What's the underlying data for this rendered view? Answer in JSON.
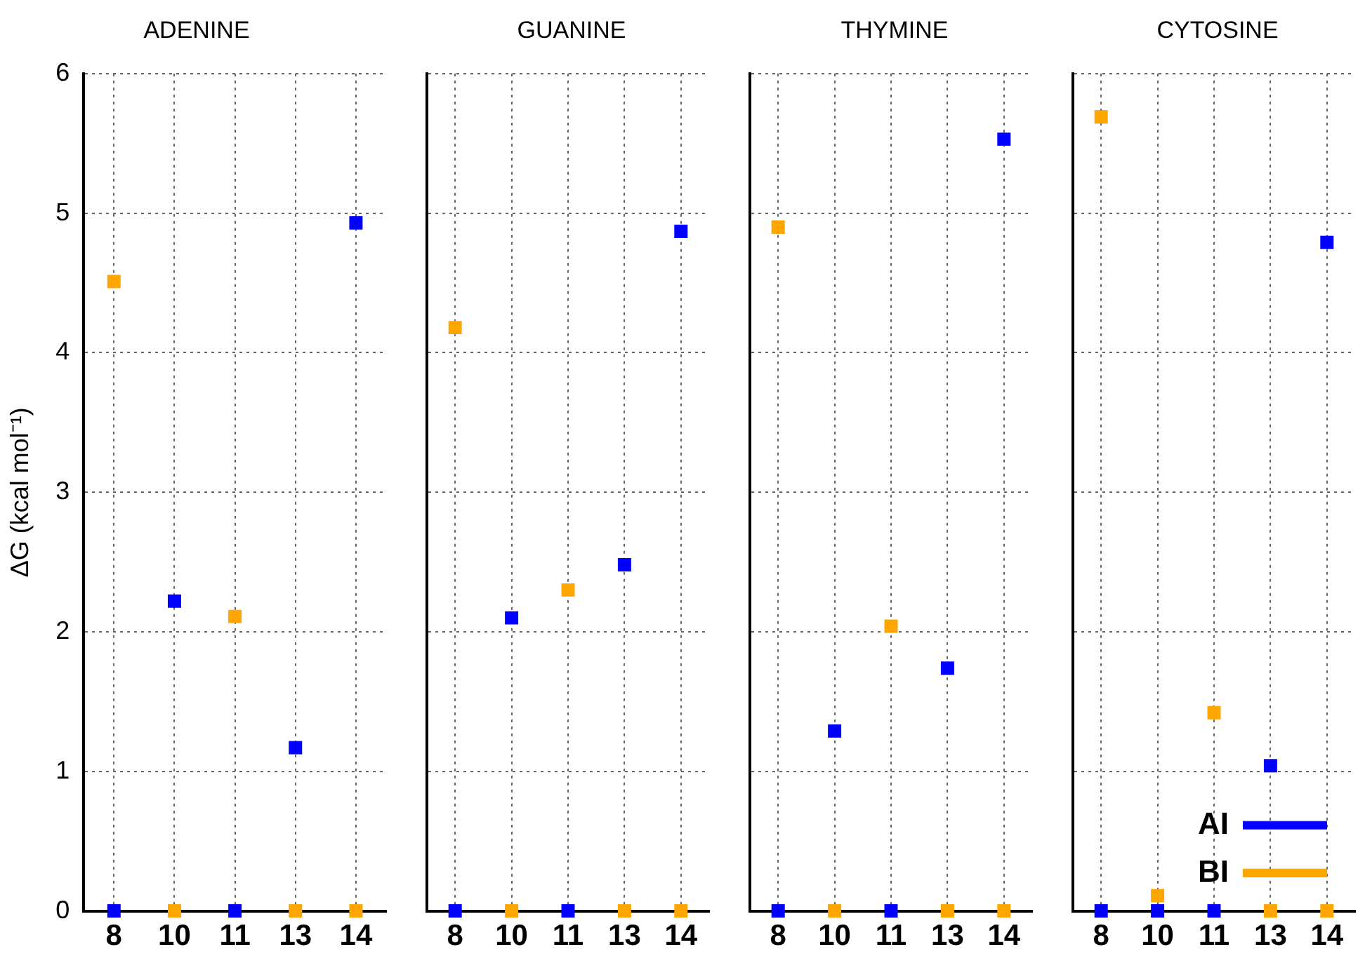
{
  "chart_data": [
    {
      "type": "scatter",
      "marker": "square",
      "title": "ADENINE",
      "ylabel": "ΔG (kcal mol⁻¹)",
      "categories": [
        "8",
        "10",
        "11",
        "13",
        "14"
      ],
      "ylim": [
        0,
        6
      ],
      "yticks": [
        0,
        1,
        2,
        3,
        4,
        5,
        6
      ],
      "grid": true,
      "series": [
        {
          "color": "#0000ff",
          "values": [
            0,
            2.22,
            0,
            1.17,
            4.93
          ]
        },
        {
          "color": "#ffa500",
          "values": [
            4.51,
            0,
            2.11,
            0,
            0
          ]
        }
      ]
    },
    {
      "type": "scatter",
      "marker": "square",
      "title": "GUANINE",
      "categories": [
        "8",
        "10",
        "11",
        "13",
        "14"
      ],
      "ylim": [
        0,
        6
      ],
      "yticks": [
        0,
        1,
        2,
        3,
        4,
        5,
        6
      ],
      "grid": true,
      "tick_labels": "x",
      "series": [
        {
          "color": "#0000ff",
          "values": [
            0,
            2.1,
            0,
            2.48,
            4.87
          ]
        },
        {
          "color": "#ffa500",
          "values": [
            4.18,
            0,
            2.3,
            0,
            0
          ]
        }
      ]
    },
    {
      "type": "scatter",
      "marker": "square",
      "title": "THYMINE",
      "categories": [
        "8",
        "10",
        "11",
        "13",
        "14"
      ],
      "ylim": [
        0,
        6
      ],
      "yticks": [
        0,
        1,
        2,
        3,
        4,
        5,
        6
      ],
      "grid": true,
      "tick_labels": "x",
      "series": [
        {
          "color": "#0000ff",
          "values": [
            0,
            1.29,
            0,
            1.74,
            5.53
          ]
        },
        {
          "color": "#ffa500",
          "values": [
            4.9,
            0,
            2.04,
            0,
            0
          ]
        }
      ]
    },
    {
      "type": "scatter",
      "marker": "square",
      "title": "CYTOSINE",
      "categories": [
        "8",
        "10",
        "11",
        "13",
        "14"
      ],
      "ylim": [
        0,
        6
      ],
      "yticks": [
        0,
        1,
        2,
        3,
        4,
        5,
        6
      ],
      "grid": true,
      "tick_labels": "x",
      "legend": "bottom right",
      "series": [
        {
          "name": "AI",
          "color": "#0000ff",
          "values": [
            0,
            0,
            0,
            1.04,
            4.79
          ]
        },
        {
          "name": "BI",
          "color": "#ffa500",
          "values": [
            5.69,
            0.11,
            1.42,
            0,
            0
          ]
        }
      ]
    }
  ]
}
